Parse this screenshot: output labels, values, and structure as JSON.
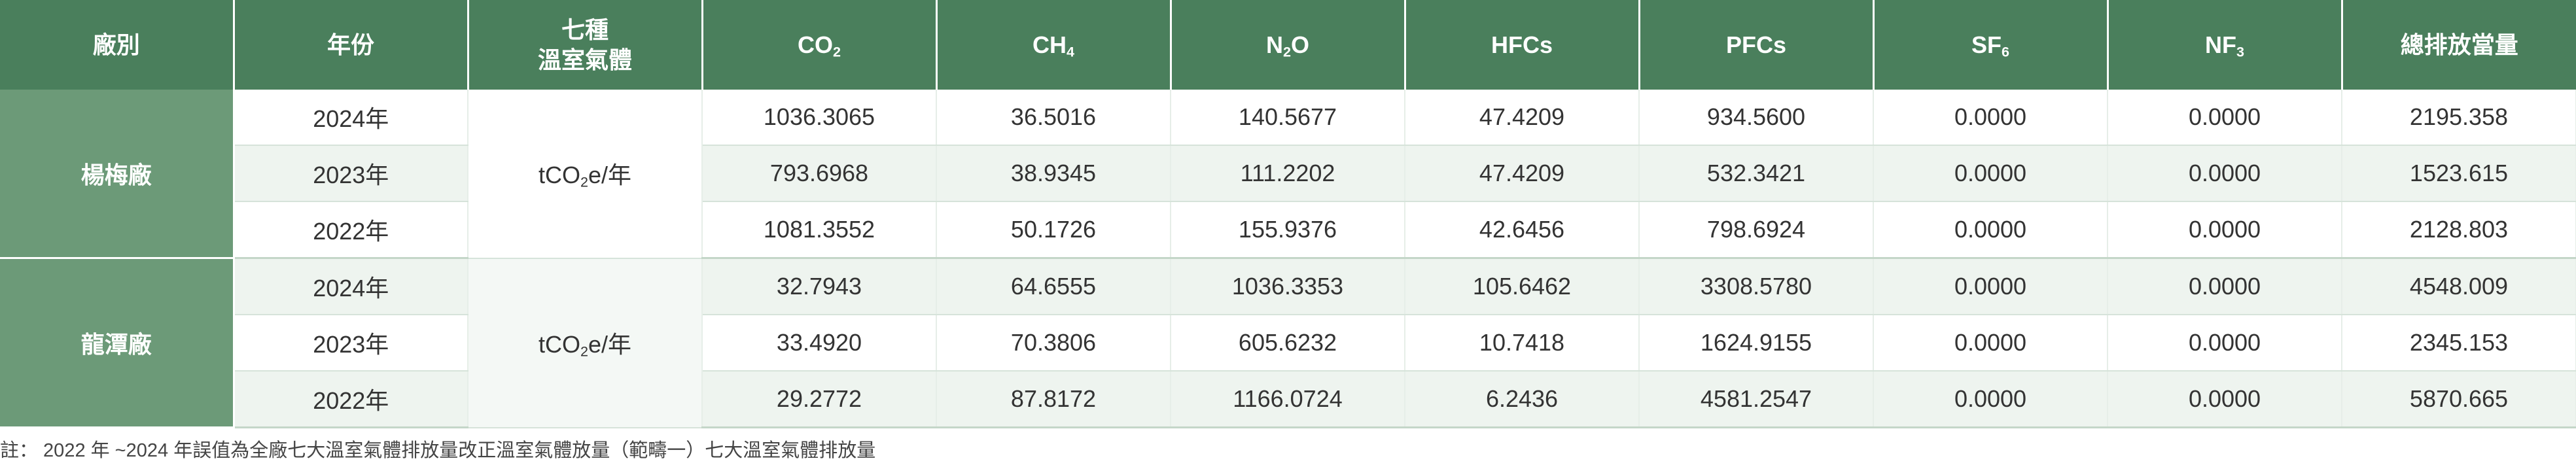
{
  "header": {
    "plant": "廠別",
    "year": "年份",
    "gas_type_line1": "七種",
    "gas_type_line2": "溫室氣體",
    "co2": {
      "base": "CO",
      "sub": "2"
    },
    "ch4": {
      "base": "CH",
      "sub": "4"
    },
    "n2o": {
      "base": "N",
      "sub": "2",
      "tail": "O"
    },
    "hfcs": "HFCs",
    "pfcs": "PFCs",
    "sf6": {
      "base": "SF",
      "sub": "6"
    },
    "nf3": {
      "base": "NF",
      "sub": "3"
    },
    "total": "總排放當量"
  },
  "unit": {
    "pre": "tCO",
    "sub": "2",
    "post": "e/年"
  },
  "plants": [
    {
      "name": "楊梅廠",
      "rows": [
        {
          "year": "2024年",
          "co2": "1036.3065",
          "ch4": "36.5016",
          "n2o": "140.5677",
          "hfcs": "47.4209",
          "pfcs": "934.5600",
          "sf6": "0.0000",
          "nf3": "0.0000",
          "total": "2195.358"
        },
        {
          "year": "2023年",
          "co2": "793.6968",
          "ch4": "38.9345",
          "n2o": "111.2202",
          "hfcs": "47.4209",
          "pfcs": "532.3421",
          "sf6": "0.0000",
          "nf3": "0.0000",
          "total": "1523.615"
        },
        {
          "year": "2022年",
          "co2": "1081.3552",
          "ch4": "50.1726",
          "n2o": "155.9376",
          "hfcs": "42.6456",
          "pfcs": "798.6924",
          "sf6": "0.0000",
          "nf3": "0.0000",
          "total": "2128.803"
        }
      ]
    },
    {
      "name": "龍潭廠",
      "rows": [
        {
          "year": "2024年",
          "co2": "32.7943",
          "ch4": "64.6555",
          "n2o": "1036.3353",
          "hfcs": "105.6462",
          "pfcs": "3308.5780",
          "sf6": "0.0000",
          "nf3": "0.0000",
          "total": "4548.009"
        },
        {
          "year": "2023年",
          "co2": "33.4920",
          "ch4": "70.3806",
          "n2o": "605.6232",
          "hfcs": "10.7418",
          "pfcs": "1624.9155",
          "sf6": "0.0000",
          "nf3": "0.0000",
          "total": "2345.153"
        },
        {
          "year": "2022年",
          "co2": "29.2772",
          "ch4": "87.8172",
          "n2o": "1166.0724",
          "hfcs": "6.2436",
          "pfcs": "4581.2547",
          "sf6": "0.0000",
          "nf3": "0.0000",
          "total": "5870.665"
        }
      ]
    }
  ],
  "footnote": "註： 2022 年 ~2024 年誤值為全廠七大溫室氣體排放量改正溫室氣體放量（範疇一）七大溫室氣體排放量"
}
